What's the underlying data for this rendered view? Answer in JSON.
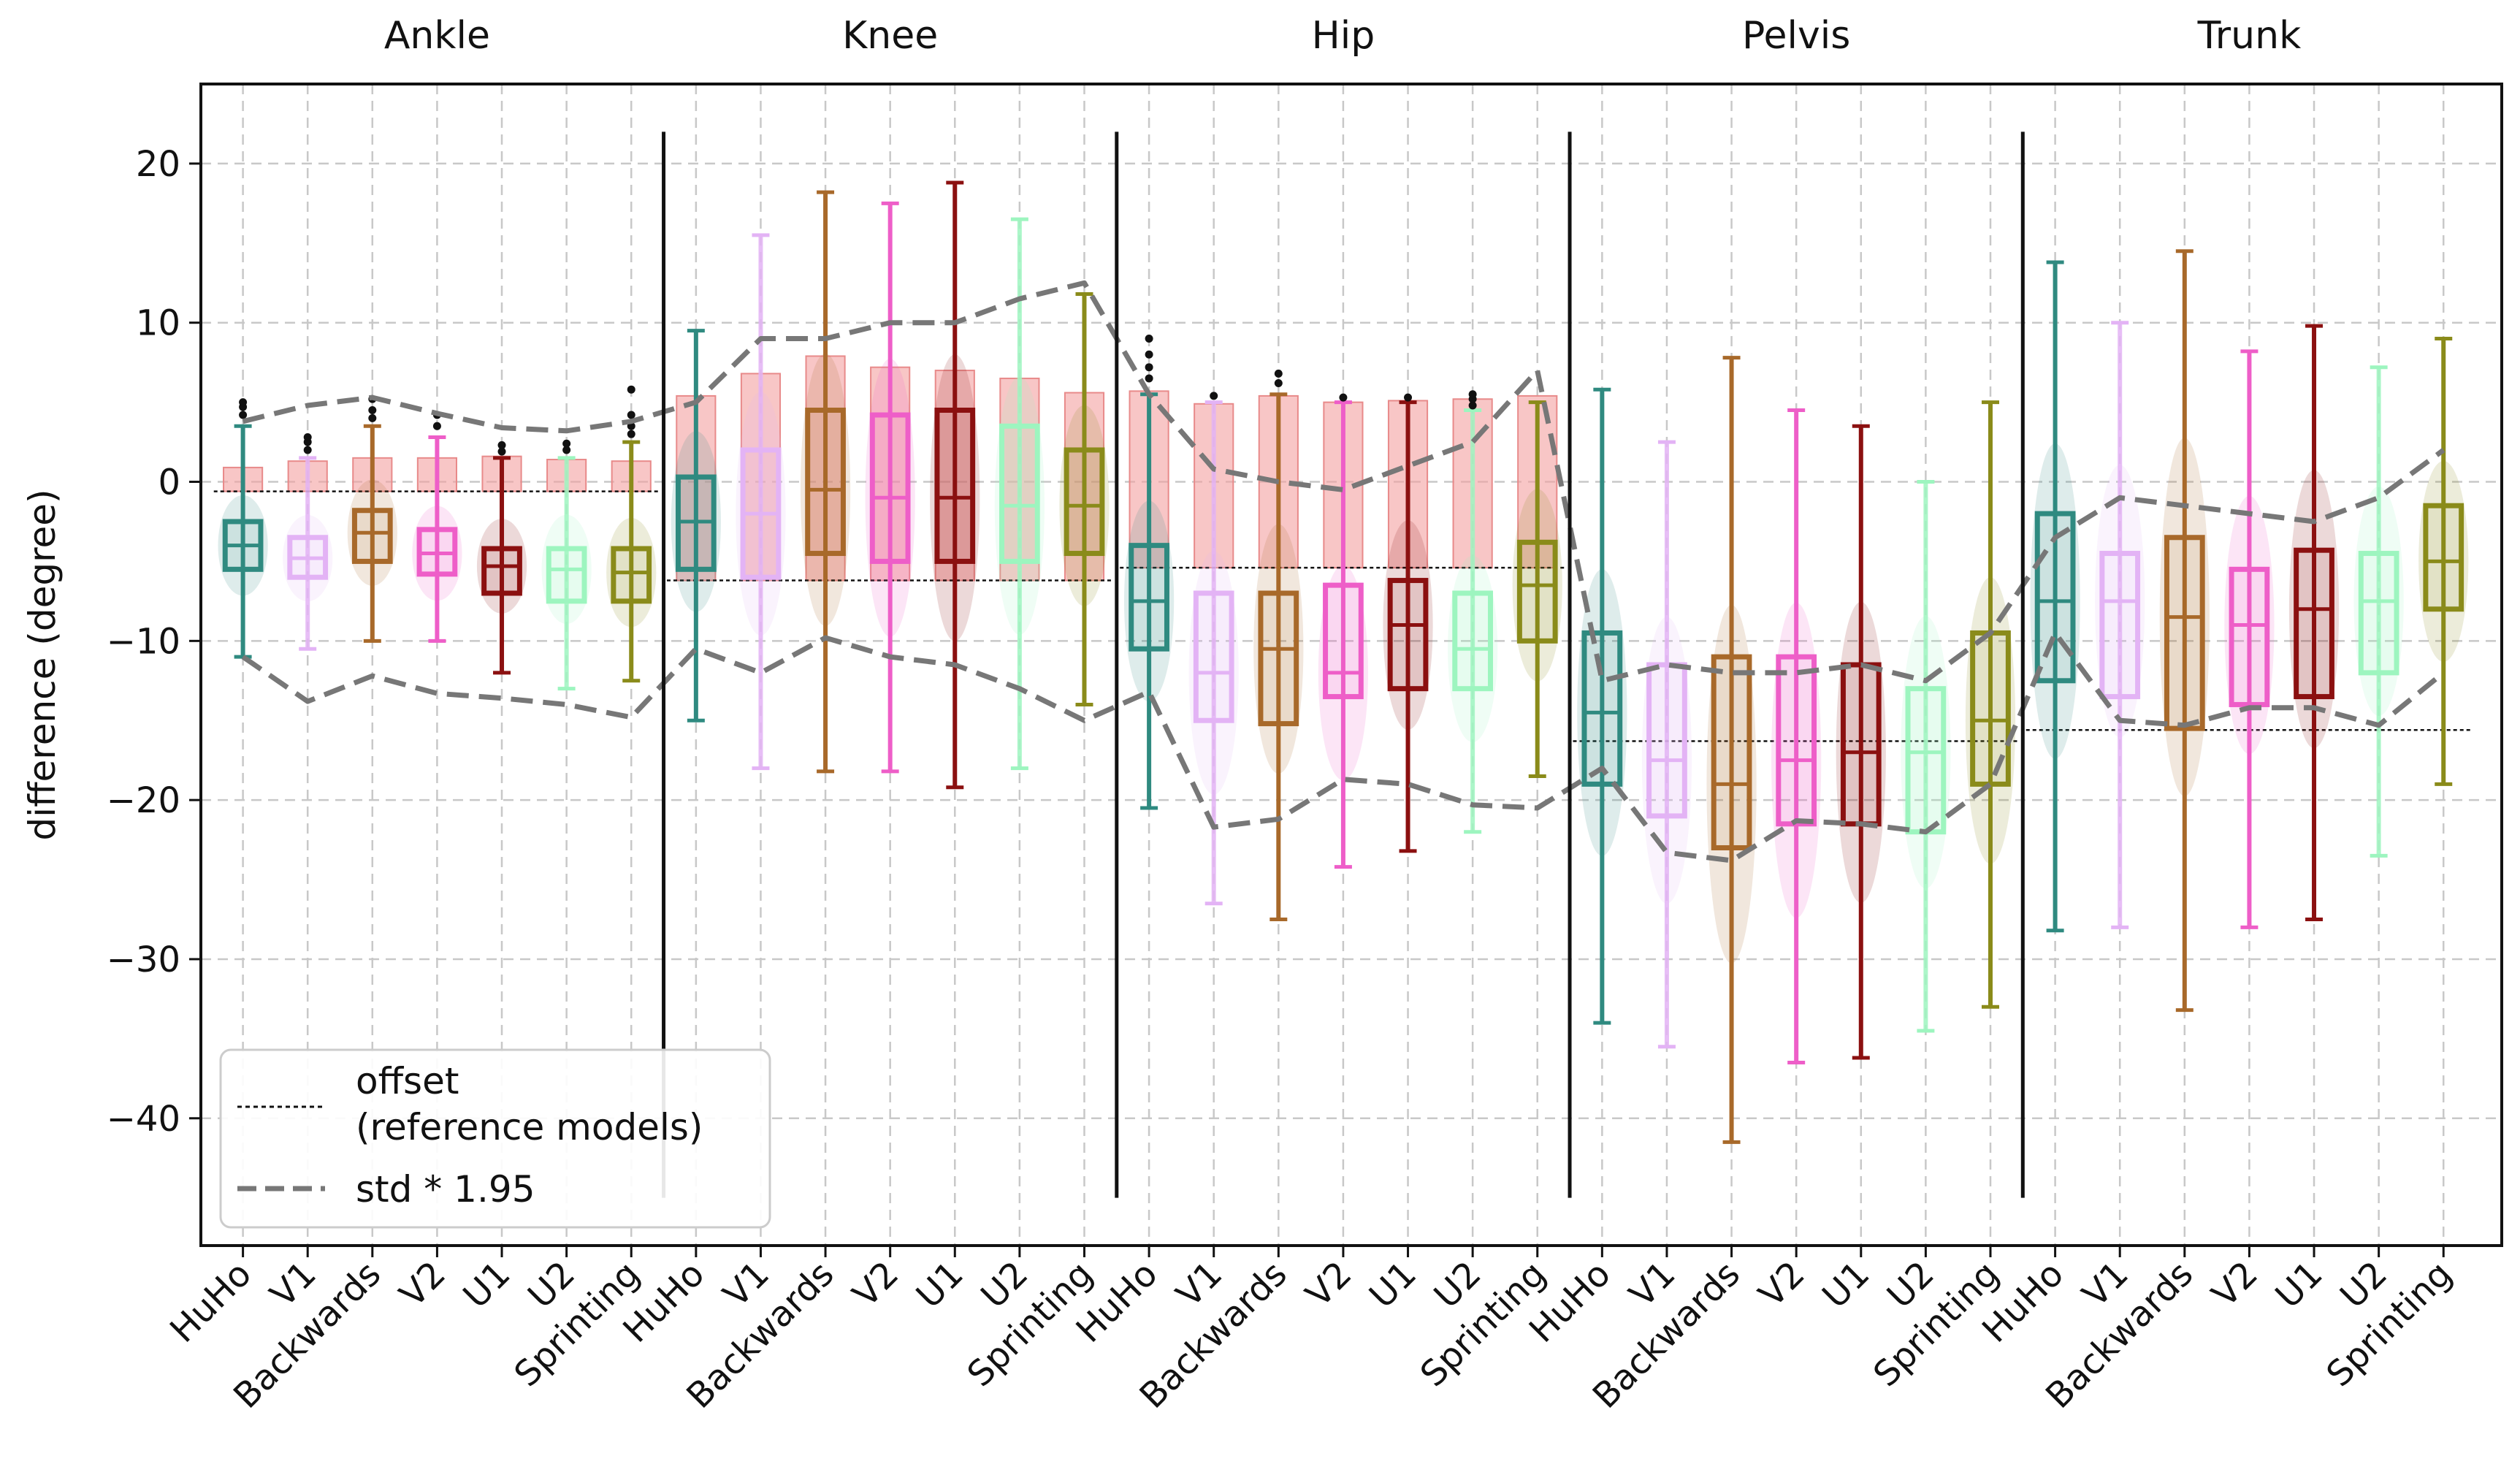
{
  "chart_data": {
    "type": "box",
    "ylabel": "difference (degree)",
    "ylim": [
      -48,
      25
    ],
    "yticks": [
      20,
      10,
      0,
      -10,
      -20,
      -30,
      -40
    ],
    "yticklabels": [
      "20",
      "10",
      "0",
      "−10",
      "−20",
      "−30",
      "−40"
    ],
    "grid": true,
    "groups": [
      "Ankle",
      "Knee",
      "Hip",
      "Pelvis",
      "Trunk"
    ],
    "categories": [
      "HuHo",
      "V1",
      "Backwards",
      "V2",
      "U1",
      "U2",
      "Sprinting"
    ],
    "series_colors": [
      "#2f8a80",
      "#e3b3f5",
      "#a8692a",
      "#ee5ec8",
      "#8b1010",
      "#9df5bf",
      "#8a8b1a"
    ],
    "offsets": [
      -0.6,
      -6.2,
      -5.4,
      -16.3,
      -15.6
    ],
    "boxes": {
      "Ankle": [
        {
          "q1": -5.5,
          "median": -4.0,
          "q3": -2.5,
          "whisker_low": -11.0,
          "whisker_high": 3.5,
          "outliers": [
            4.2,
            4.7,
            5.0
          ],
          "mean_bar": 0.9
        },
        {
          "q1": -6.0,
          "median": -4.8,
          "q3": -3.5,
          "whisker_low": -10.5,
          "whisker_high": 1.5,
          "outliers": [
            2.0,
            2.5,
            2.8
          ],
          "mean_bar": 1.3
        },
        {
          "q1": -5.0,
          "median": -3.2,
          "q3": -1.8,
          "whisker_low": -10.0,
          "whisker_high": 3.5,
          "outliers": [
            4.0,
            4.5,
            5.2
          ],
          "mean_bar": 1.5
        },
        {
          "q1": -5.8,
          "median": -4.5,
          "q3": -3.0,
          "whisker_low": -10.0,
          "whisker_high": 2.8,
          "outliers": [
            3.5,
            4.2
          ],
          "mean_bar": 1.5
        },
        {
          "q1": -7.0,
          "median": -5.3,
          "q3": -4.2,
          "whisker_low": -12.0,
          "whisker_high": 1.5,
          "outliers": [
            1.9,
            2.3
          ],
          "mean_bar": 1.6
        },
        {
          "q1": -7.5,
          "median": -5.5,
          "q3": -4.2,
          "whisker_low": -13.0,
          "whisker_high": 1.5,
          "outliers": [
            2.0,
            2.4
          ],
          "mean_bar": 1.4
        },
        {
          "q1": -7.5,
          "median": -5.7,
          "q3": -4.2,
          "whisker_low": -12.5,
          "whisker_high": 2.5,
          "outliers": [
            3.0,
            3.5,
            4.2,
            5.8
          ],
          "mean_bar": 1.3
        }
      ],
      "Knee": [
        {
          "q1": -5.5,
          "median": -2.5,
          "q3": 0.3,
          "whisker_low": -15.0,
          "whisker_high": 9.5,
          "outliers": [],
          "mean_bar": 5.4
        },
        {
          "q1": -6.0,
          "median": -2.0,
          "q3": 2.0,
          "whisker_low": -18.0,
          "whisker_high": 15.5,
          "outliers": [],
          "mean_bar": 6.8
        },
        {
          "q1": -4.5,
          "median": -0.5,
          "q3": 4.5,
          "whisker_low": -18.2,
          "whisker_high": 18.2,
          "outliers": [],
          "mean_bar": 7.9
        },
        {
          "q1": -5.0,
          "median": -1.0,
          "q3": 4.2,
          "whisker_low": -18.2,
          "whisker_high": 17.5,
          "outliers": [],
          "mean_bar": 7.2
        },
        {
          "q1": -5.0,
          "median": -1.0,
          "q3": 4.5,
          "whisker_low": -19.2,
          "whisker_high": 18.8,
          "outliers": [],
          "mean_bar": 7.0
        },
        {
          "q1": -5.0,
          "median": -1.5,
          "q3": 3.5,
          "whisker_low": -18.0,
          "whisker_high": 16.5,
          "outliers": [],
          "mean_bar": 6.5
        },
        {
          "q1": -4.5,
          "median": -1.5,
          "q3": 2.0,
          "whisker_low": -14.0,
          "whisker_high": 11.8,
          "outliers": [],
          "mean_bar": 5.6
        }
      ],
      "Hip": [
        {
          "q1": -10.5,
          "median": -7.5,
          "q3": -4.0,
          "whisker_low": -20.5,
          "whisker_high": 5.5,
          "outliers": [
            6.5,
            7.2,
            8.0,
            9.0
          ],
          "mean_bar": 5.7
        },
        {
          "q1": -15.0,
          "median": -12.0,
          "q3": -7.0,
          "whisker_low": -26.5,
          "whisker_high": 5.0,
          "outliers": [
            5.4
          ],
          "mean_bar": 4.9
        },
        {
          "q1": -15.2,
          "median": -10.5,
          "q3": -7.0,
          "whisker_low": -27.5,
          "whisker_high": 5.5,
          "outliers": [
            6.2,
            6.8
          ],
          "mean_bar": 5.4
        },
        {
          "q1": -13.5,
          "median": -12.0,
          "q3": -6.5,
          "whisker_low": -24.2,
          "whisker_high": 5.0,
          "outliers": [
            5.3
          ],
          "mean_bar": 5.0
        },
        {
          "q1": -13.0,
          "median": -9.0,
          "q3": -6.2,
          "whisker_low": -23.2,
          "whisker_high": 5.0,
          "outliers": [
            5.3
          ],
          "mean_bar": 5.1
        },
        {
          "q1": -13.0,
          "median": -10.5,
          "q3": -7.0,
          "whisker_low": -22.0,
          "whisker_high": 4.5,
          "outliers": [
            4.8,
            5.2,
            5.5
          ],
          "mean_bar": 5.2
        },
        {
          "q1": -10.0,
          "median": -6.5,
          "q3": -3.8,
          "whisker_low": -18.5,
          "whisker_high": 5.0,
          "outliers": [],
          "mean_bar": 5.4
        }
      ],
      "Pelvis": [
        {
          "q1": -19.0,
          "median": -14.5,
          "q3": -9.5,
          "whisker_low": -34.0,
          "whisker_high": 5.8,
          "outliers": [],
          "mean_bar": null
        },
        {
          "q1": -21.0,
          "median": -17.5,
          "q3": -11.5,
          "whisker_low": -35.5,
          "whisker_high": 2.5,
          "outliers": [],
          "mean_bar": null
        },
        {
          "q1": -23.0,
          "median": -19.0,
          "q3": -11.0,
          "whisker_low": -41.5,
          "whisker_high": 7.8,
          "outliers": [],
          "mean_bar": null
        },
        {
          "q1": -21.5,
          "median": -17.5,
          "q3": -11.0,
          "whisker_low": -36.5,
          "whisker_high": 4.5,
          "outliers": [],
          "mean_bar": null
        },
        {
          "q1": -21.5,
          "median": -17.0,
          "q3": -11.5,
          "whisker_low": -36.2,
          "whisker_high": 3.5,
          "outliers": [],
          "mean_bar": null
        },
        {
          "q1": -22.0,
          "median": -17.0,
          "q3": -13.0,
          "whisker_low": -34.5,
          "whisker_high": 0.0,
          "outliers": [],
          "mean_bar": null
        },
        {
          "q1": -19.0,
          "median": -15.0,
          "q3": -9.5,
          "whisker_low": -33.0,
          "whisker_high": 5.0,
          "outliers": [],
          "mean_bar": null
        }
      ],
      "Trunk": [
        {
          "q1": -12.5,
          "median": -7.5,
          "q3": -2.0,
          "whisker_low": -28.2,
          "whisker_high": 13.8,
          "outliers": [],
          "mean_bar": null
        },
        {
          "q1": -13.5,
          "median": -7.5,
          "q3": -4.5,
          "whisker_low": -28.0,
          "whisker_high": 10.0,
          "outliers": [],
          "mean_bar": null
        },
        {
          "q1": -15.5,
          "median": -8.5,
          "q3": -3.5,
          "whisker_low": -33.2,
          "whisker_high": 14.5,
          "outliers": [],
          "mean_bar": null
        },
        {
          "q1": -14.0,
          "median": -9.0,
          "q3": -5.5,
          "whisker_low": -28.0,
          "whisker_high": 8.2,
          "outliers": [],
          "mean_bar": null
        },
        {
          "q1": -13.5,
          "median": -8.0,
          "q3": -4.3,
          "whisker_low": -27.5,
          "whisker_high": 9.8,
          "outliers": [],
          "mean_bar": null
        },
        {
          "q1": -12.0,
          "median": -7.5,
          "q3": -4.5,
          "whisker_low": -23.5,
          "whisker_high": 7.2,
          "outliers": [],
          "mean_bar": null
        },
        {
          "q1": -8.0,
          "median": -5.0,
          "q3": -1.5,
          "whisker_low": -19.0,
          "whisker_high": 9.0,
          "outliers": [],
          "mean_bar": null
        }
      ]
    },
    "std_upper": [
      3.8,
      4.8,
      5.3,
      4.3,
      3.4,
      3.2,
      3.8,
      5.0,
      9.0,
      9.0,
      10.0,
      10.0,
      11.5,
      12.5,
      5.5,
      0.8,
      0.0,
      -0.5,
      1.0,
      2.5,
      7.0,
      -12.5,
      -11.5,
      -12.0,
      -12.0,
      -11.5,
      -12.5,
      -9.5,
      -3.5,
      -1.0,
      -1.5,
      -2.0,
      -2.5,
      -1.0,
      2.0
    ],
    "std_lower": [
      -11.0,
      -13.8,
      -12.2,
      -13.3,
      -13.6,
      -14.0,
      -14.8,
      -10.5,
      -12.0,
      -9.8,
      -11.0,
      -11.5,
      -13.0,
      -15.0,
      -13.2,
      -21.7,
      -21.2,
      -18.7,
      -19.0,
      -20.3,
      -20.5,
      -18.0,
      -23.3,
      -23.8,
      -21.3,
      -21.5,
      -22.0,
      -19.0,
      -9.5,
      -15.0,
      -15.3,
      -14.2,
      -14.2,
      -15.3,
      -12.0
    ],
    "legend": [
      {
        "label_line1": "offset",
        "label_line2": "(reference models)",
        "style": "dotted"
      },
      {
        "label_line1": "std * 1.95",
        "label_line2": "",
        "style": "dashed"
      }
    ]
  }
}
